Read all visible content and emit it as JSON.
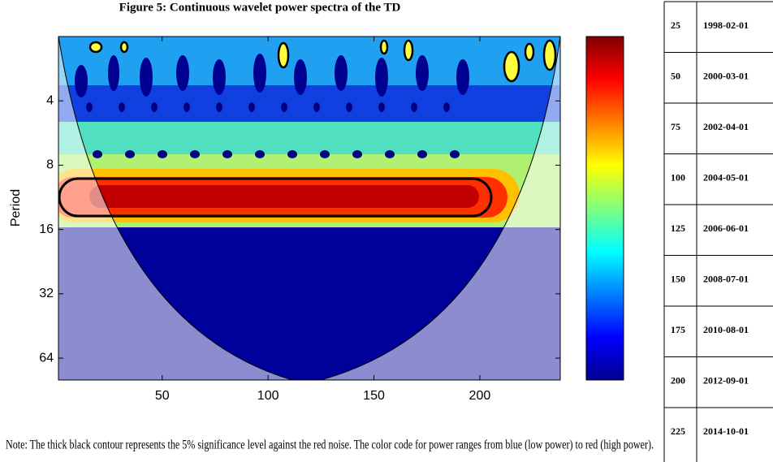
{
  "figure": {
    "title": "Figure 5: Continuous wavelet power spectra of the TD",
    "note": "Note: The thick black contour represents the 5% significance level against the red noise. The color code for power ranges from blue (low power) to red (high power)."
  },
  "chart_data": {
    "type": "wavelet",
    "ylabel": "Period",
    "xlim": [
      1,
      238
    ],
    "xticks": [
      50,
      100,
      150,
      200
    ],
    "ylim": [
      2,
      81
    ],
    "yticks": [
      4,
      8,
      16,
      32,
      64
    ],
    "log_y": true,
    "y_reversed": true
  },
  "table": {
    "rows": [
      [
        "25",
        "1998-02-01"
      ],
      [
        "50",
        "2000-03-01"
      ],
      [
        "75",
        "2002-04-01"
      ],
      [
        "100",
        "2004-05-01"
      ],
      [
        "125",
        "2006-06-01"
      ],
      [
        "150",
        "2008-07-01"
      ],
      [
        "175",
        "2010-08-01"
      ],
      [
        "200",
        "2012-09-01"
      ],
      [
        "225",
        "2014-10-01"
      ]
    ]
  }
}
